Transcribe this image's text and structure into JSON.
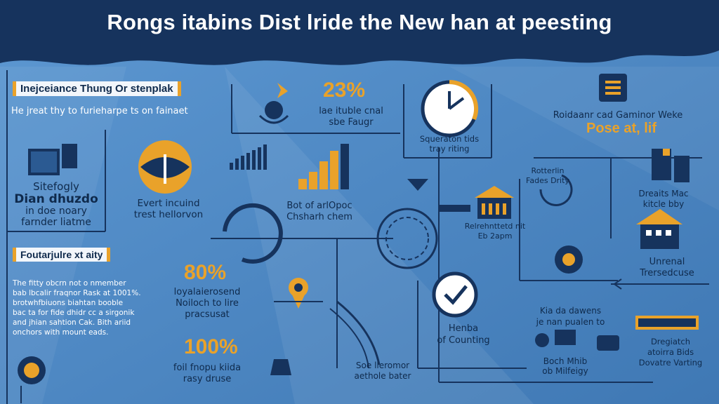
{
  "title": "Rongs itabins Dist lride the New han at peesting",
  "left_panel": {
    "tag1": "Inejceiance Thung Or stenplak",
    "subtitle": "He jreat thy to furieharpe ts on fainaet",
    "stat_block_l1": "Sitefogly",
    "stat_block_l2": "Dian dhuzdo",
    "stat_block_l3": "in doe noary",
    "stat_block_l4": "farnder liatme",
    "tag2": "Foutarjulre xt aity",
    "para_l1": "The fitty obcrn not o  nmember",
    "para_l2": "bab lbcalir fraqnor Rask at 1001%.",
    "para_l3": "brotwhfbiuons biahtan booble",
    "para_l4": "bac ta for fide dhidr cc a sirgonik",
    "para_l5": "and jhian sahtion Cak. Bith ariid",
    "para_l6": "onchors with mount eads."
  },
  "middle": {
    "ev_l1": "Evert incuind",
    "ev_l2": "trest hellorvon",
    "pct1": "23%",
    "pct1_l1": "lae ituble cnal",
    "pct1_l2": "sbe Faugr",
    "chart_l1": "Bot of arlOpoc",
    "chart_l2": "Chsharh chem",
    "pct2": "80%",
    "pct2_l1": "loyalaierosend",
    "pct2_l2": "Noiloch to lire",
    "pct2_l3": "pracsusat",
    "pct3": "100%",
    "pct3_l1": "foil fnopu kiida",
    "pct3_l2": "rasy druse",
    "bottom_l1": "Soe lleromor",
    "bottom_l2": "aethole bater"
  },
  "right": {
    "clock_l1": "Squeraton tids",
    "clock_l2": "tray riting",
    "hdr_l1": "Roidaanr cad Gaminor Weke",
    "hdr_big": "Pose at, lif",
    "rot_l1": "Rotterlin",
    "rot_l2": "Fades Drity",
    "ref_l1": "Relrehnttetd nit",
    "ref_l2": "Eb 2apm",
    "dre_l1": "Dreaits Mac",
    "dre_l2": "kitcle bby",
    "unr_l1": "Unrenal",
    "unr_l2": "Trersedcuse",
    "henba_l1": "Henba",
    "henba_l2": "of Counting",
    "kia_l1": "Kia da dawens",
    "kia_l2": "je nan pualen to",
    "boch_l1": "Boch Mhib",
    "boch_l2": "ob Milfeigy",
    "dreg_l1": "Dregiatch",
    "dreg_l2": "atoirra Bids",
    "dreg_l3": "Dovatre Varting"
  },
  "colors": {
    "navy": "#16335d",
    "accent": "#e9a22a",
    "bg": "#4f8ac4"
  }
}
